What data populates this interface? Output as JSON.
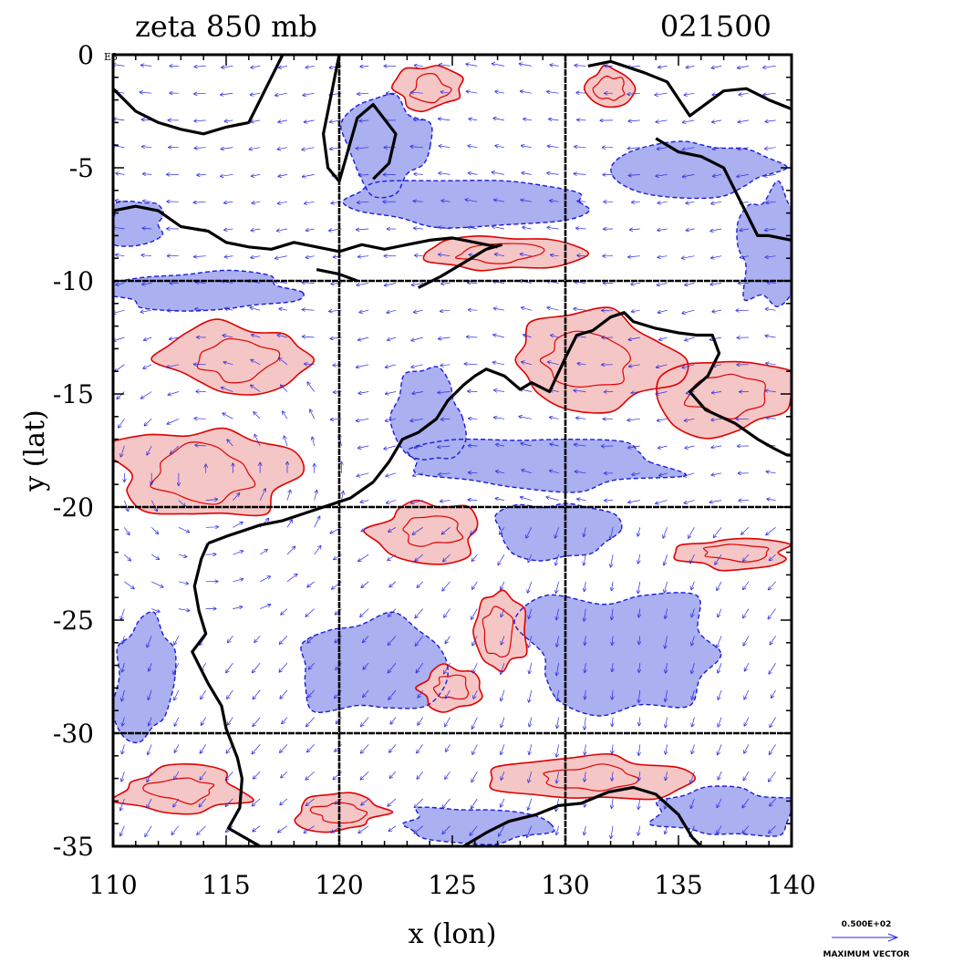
{
  "header": {
    "title": "zeta 850 mb",
    "timestamp": "021500"
  },
  "axes": {
    "xlabel": "x (lon)",
    "ylabel": "y (lat)",
    "x_ticks": [
      "110",
      "115",
      "120",
      "125",
      "130",
      "135",
      "140"
    ],
    "y_ticks": [
      "0",
      "-5",
      "-10",
      "-15",
      "-20",
      "-25",
      "-30",
      "-35"
    ],
    "y_exponent": "E3",
    "xlim": [
      110,
      140
    ],
    "ylim": [
      -35,
      0
    ],
    "grid_lon": [
      120,
      130
    ],
    "grid_lat": [
      -10,
      -20,
      -30
    ]
  },
  "vector_legend": {
    "value": "0.500E+02",
    "label": "MAXIMUM VECTOR"
  },
  "colors": {
    "positive_fill": "#f5c6c6",
    "positive_line": "#e00000",
    "negative_fill": "#aab0f0",
    "negative_line": "#1a1adc",
    "coastline": "#000000",
    "vector": "#2a2ae0"
  },
  "chart_data": {
    "type": "map",
    "field": "relative vorticity (zeta)",
    "level": "850 mb",
    "time": "021500",
    "region": {
      "lon": [
        110,
        140
      ],
      "lat": [
        -35,
        0
      ]
    },
    "positive_regions": [
      {
        "lon": 114,
        "lat": -18.5,
        "rx": 4.2,
        "ry": 2.2
      },
      {
        "lon": 115.5,
        "lat": -13.5,
        "rx": 3.5,
        "ry": 1.6
      },
      {
        "lon": 131,
        "lat": -13.5,
        "rx": 3.8,
        "ry": 2.0
      },
      {
        "lon": 137,
        "lat": -15,
        "rx": 3.0,
        "ry": 1.8
      },
      {
        "lon": 127,
        "lat": -8.8,
        "rx": 3.6,
        "ry": 0.8
      },
      {
        "lon": 124,
        "lat": -21,
        "rx": 2.5,
        "ry": 1.3
      },
      {
        "lon": 127,
        "lat": -25.5,
        "rx": 1.2,
        "ry": 2.0
      },
      {
        "lon": 125,
        "lat": -28,
        "rx": 1.5,
        "ry": 1.0
      },
      {
        "lon": 131,
        "lat": -32,
        "rx": 4.0,
        "ry": 1.0
      },
      {
        "lon": 113,
        "lat": -32.5,
        "rx": 3.0,
        "ry": 1.0
      },
      {
        "lon": 137.5,
        "lat": -22,
        "rx": 2.5,
        "ry": 0.7
      },
      {
        "lon": 120,
        "lat": -33.5,
        "rx": 2.0,
        "ry": 0.8
      },
      {
        "lon": 132,
        "lat": -1.5,
        "rx": 1.2,
        "ry": 1.0
      },
      {
        "lon": 124,
        "lat": -1.5,
        "rx": 1.5,
        "ry": 1.0
      }
    ],
    "negative_regions": [
      {
        "lon": 114,
        "lat": -10.5,
        "rx": 4.5,
        "ry": 0.9
      },
      {
        "lon": 132.5,
        "lat": -26.5,
        "rx": 4.5,
        "ry": 2.8
      },
      {
        "lon": 121.5,
        "lat": -27,
        "rx": 3.5,
        "ry": 2.2
      },
      {
        "lon": 129,
        "lat": -18,
        "rx": 6.0,
        "ry": 1.2
      },
      {
        "lon": 126,
        "lat": -6.5,
        "rx": 6.0,
        "ry": 1.0
      },
      {
        "lon": 136,
        "lat": -5,
        "rx": 3.5,
        "ry": 1.2
      },
      {
        "lon": 139,
        "lat": -8.5,
        "rx": 1.5,
        "ry": 2.5
      },
      {
        "lon": 122,
        "lat": -4,
        "rx": 2.0,
        "ry": 2.0
      },
      {
        "lon": 111.5,
        "lat": -27.5,
        "rx": 1.5,
        "ry": 3.0
      },
      {
        "lon": 137,
        "lat": -33.5,
        "rx": 3.5,
        "ry": 1.2
      },
      {
        "lon": 126,
        "lat": -34,
        "rx": 3.5,
        "ry": 0.8
      },
      {
        "lon": 111,
        "lat": -7.5,
        "rx": 1.3,
        "ry": 1.0
      },
      {
        "lon": 124,
        "lat": -16,
        "rx": 1.5,
        "ry": 2.0
      },
      {
        "lon": 129.5,
        "lat": -21,
        "rx": 2.5,
        "ry": 1.3
      }
    ],
    "coastlines": [
      {
        "name": "australia-west-south",
        "points": [
          [
            114.2,
            -21.6
          ],
          [
            115,
            -21.3
          ],
          [
            116.5,
            -20.8
          ],
          [
            117.5,
            -20.6
          ],
          [
            119,
            -20.1
          ],
          [
            120.5,
            -19.6
          ],
          [
            121.5,
            -18.9
          ],
          [
            122.2,
            -18.0
          ],
          [
            122.8,
            -17.0
          ],
          [
            123.5,
            -16.7
          ],
          [
            124.3,
            -16.1
          ],
          [
            124.8,
            -15.3
          ],
          [
            125.5,
            -14.6
          ],
          [
            126,
            -14.2
          ],
          [
            126.5,
            -13.9
          ],
          [
            127.3,
            -14.2
          ],
          [
            128,
            -14.8
          ],
          [
            128.5,
            -14.5
          ],
          [
            129.3,
            -14.9
          ],
          [
            130,
            -13.4
          ],
          [
            130.5,
            -12.4
          ],
          [
            131.2,
            -12.2
          ],
          [
            132,
            -11.6
          ],
          [
            132.6,
            -11.4
          ],
          [
            133,
            -11.8
          ],
          [
            134,
            -12.1
          ],
          [
            135,
            -12.3
          ],
          [
            135.8,
            -12.4
          ],
          [
            136.5,
            -12.4
          ],
          [
            136.8,
            -13.2
          ],
          [
            136.3,
            -14.2
          ],
          [
            135.5,
            -14.9
          ],
          [
            136.2,
            -15.7
          ],
          [
            137.5,
            -16.3
          ],
          [
            138.5,
            -17.0
          ],
          [
            139.2,
            -17.4
          ],
          [
            139.8,
            -17.7
          ],
          [
            140,
            -17.7
          ]
        ]
      },
      {
        "name": "australia-west-coast",
        "points": [
          [
            114.2,
            -21.6
          ],
          [
            113.9,
            -22.3
          ],
          [
            113.6,
            -23.5
          ],
          [
            113.8,
            -24.6
          ],
          [
            114.1,
            -25.6
          ],
          [
            113.5,
            -26.4
          ],
          [
            113.8,
            -27.0
          ],
          [
            114.2,
            -27.8
          ],
          [
            114.8,
            -28.8
          ],
          [
            115.0,
            -29.8
          ],
          [
            115.5,
            -31.1
          ],
          [
            115.7,
            -32.0
          ],
          [
            115.6,
            -33.3
          ],
          [
            115.1,
            -34.2
          ],
          [
            115.8,
            -34.6
          ],
          [
            116.5,
            -35.0
          ]
        ]
      },
      {
        "name": "australia-south-coast",
        "points": [
          [
            125.5,
            -35
          ],
          [
            126.5,
            -34.4
          ],
          [
            127.5,
            -33.9
          ],
          [
            128.7,
            -33.6
          ],
          [
            129.7,
            -33.2
          ],
          [
            130.7,
            -33.1
          ],
          [
            131.9,
            -32.6
          ],
          [
            133,
            -32.4
          ],
          [
            134,
            -32.7
          ],
          [
            135,
            -33.6
          ],
          [
            135.6,
            -34.6
          ],
          [
            136,
            -35
          ]
        ]
      },
      {
        "name": "java-bali",
        "points": [
          [
            110,
            -6.9
          ],
          [
            111,
            -6.7
          ],
          [
            112,
            -6.9
          ],
          [
            113,
            -7.6
          ],
          [
            114.2,
            -7.8
          ],
          [
            115,
            -8.3
          ],
          [
            116,
            -8.5
          ],
          [
            117,
            -8.6
          ],
          [
            118,
            -8.3
          ],
          [
            119,
            -8.5
          ],
          [
            120,
            -8.7
          ],
          [
            121,
            -8.4
          ],
          [
            122,
            -8.6
          ],
          [
            123,
            -8.4
          ],
          [
            124,
            -8.2
          ],
          [
            125,
            -8.1
          ],
          [
            126,
            -8.3
          ],
          [
            127,
            -8.5
          ]
        ]
      },
      {
        "name": "timor",
        "points": [
          [
            123.5,
            -10.3
          ],
          [
            124.5,
            -9.8
          ],
          [
            125.5,
            -9.2
          ],
          [
            126.5,
            -8.6
          ],
          [
            127.2,
            -8.4
          ]
        ]
      },
      {
        "name": "sumba",
        "points": [
          [
            119,
            -9.5
          ],
          [
            120,
            -9.7
          ],
          [
            120.8,
            -10.0
          ]
        ]
      },
      {
        "name": "sulawesi",
        "points": [
          [
            120,
            0
          ],
          [
            119.8,
            -1
          ],
          [
            119.5,
            -2.5
          ],
          [
            119.3,
            -3.5
          ],
          [
            119.5,
            -5.0
          ],
          [
            120,
            -5.6
          ],
          [
            120.4,
            -4.2
          ],
          [
            120.8,
            -2.8
          ],
          [
            121.5,
            -2.2
          ],
          [
            122.5,
            -3.5
          ],
          [
            122.2,
            -4.8
          ],
          [
            121.5,
            -5.5
          ]
        ]
      },
      {
        "name": "borneo-south",
        "points": [
          [
            110,
            -1.5
          ],
          [
            111,
            -2.5
          ],
          [
            112,
            -3.0
          ],
          [
            113,
            -3.3
          ],
          [
            114,
            -3.5
          ],
          [
            115,
            -3.2
          ],
          [
            116,
            -3.0
          ],
          [
            116.5,
            -2.0
          ],
          [
            117,
            -1.0
          ],
          [
            117.5,
            0
          ]
        ]
      },
      {
        "name": "new-guinea",
        "points": [
          [
            131,
            -0.5
          ],
          [
            132,
            -0.3
          ],
          [
            133.5,
            -0.8
          ],
          [
            134.5,
            -1.2
          ],
          [
            135.5,
            -2.7
          ],
          [
            137,
            -1.6
          ],
          [
            138,
            -1.5
          ],
          [
            139,
            -2.0
          ],
          [
            140,
            -2.4
          ]
        ]
      },
      {
        "name": "new-guinea-south",
        "points": [
          [
            134,
            -3.7
          ],
          [
            135,
            -4.3
          ],
          [
            136,
            -4.5
          ],
          [
            137,
            -5.0
          ],
          [
            138,
            -7.0
          ],
          [
            138.5,
            -8.0
          ],
          [
            139,
            -8.0
          ],
          [
            140,
            -8.2
          ]
        ]
      }
    ]
  }
}
